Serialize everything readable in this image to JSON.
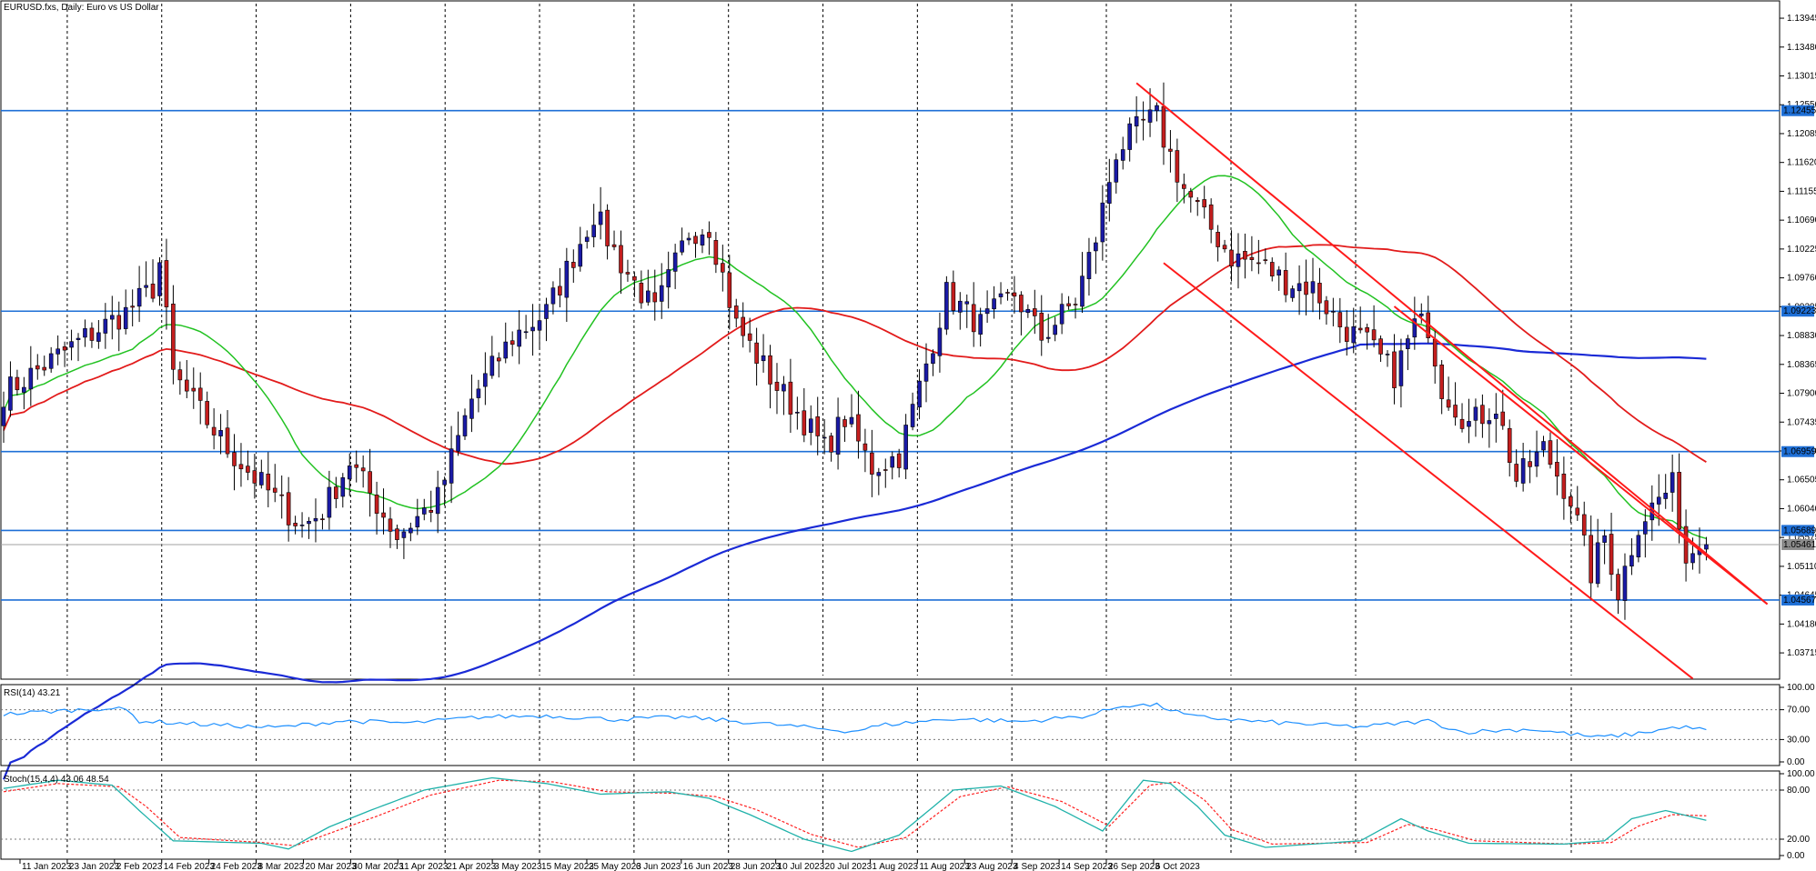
{
  "title": "EURUSD.fxs, Daily:  Euro vs US Dollar",
  "colors": {
    "background": "#ffffff",
    "frame": "#000000",
    "bull_candle": "#1a1aa6",
    "bear_candle": "#c41e1e",
    "ma_fast": "#22c222",
    "ma_mid": "#e21b1b",
    "ma_slow": "#1a2ad6",
    "hline": "#1e6fd6",
    "channel": "#ff1a1a",
    "rsi": "#1e90ff",
    "stoch_main": "#20b2aa",
    "stoch_signal": "#ff2020",
    "price_label_bg": "#1e6fd6"
  },
  "chart_data": [
    {
      "type": "candlestick",
      "title": "EURUSD.fxs, Daily:  Euro vs US Dollar",
      "price_axis_ticks": [
        "1.13945",
        "1.13480",
        "1.13015",
        "1.12550",
        "1.12085",
        "1.11620",
        "1.11155",
        "1.10690",
        "1.10225",
        "1.09760",
        "1.09295",
        "1.08830",
        "1.08365",
        "1.07900",
        "1.07435",
        "1.06970",
        "1.06505",
        "1.06040",
        "1.05575",
        "1.05110",
        "1.04645",
        "1.04180",
        "1.03715"
      ],
      "ylim": [
        1.0335,
        1.1418
      ],
      "date_axis_ticks": [
        "11 Jan 2023",
        "23 Jan 2023",
        "2 Feb 2023",
        "14 Feb 2023",
        "24 Feb 2023",
        "8 Mar 2023",
        "20 Mar 2023",
        "30 Mar 2023",
        "11 Apr 2023",
        "21 Apr 2023",
        "3 May 2023",
        "15 May 2023",
        "25 May 2023",
        "6 Jun 2023",
        "16 Jun 2023",
        "28 Jun 2023",
        "10 Jul 2023",
        "20 Jul 2023",
        "1 Aug 2023",
        "11 Aug 2023",
        "23 Aug 2023",
        "4 Sep 2023",
        "14 Sep 2023",
        "26 Sep 2023",
        "6 Oct 2023"
      ],
      "horizontal_levels": [
        "1.12455",
        "1.09223",
        "1.06959",
        "1.05689",
        "1.04567"
      ],
      "current_price": "1.05461",
      "current_price_value": 1.05461,
      "series": [
        {
          "name": "",
          "anchors": [
            [
              0,
              1.079
            ],
            [
              12,
              1.088
            ],
            [
              18,
              1.092
            ],
            [
              22,
              1.096
            ],
            [
              23,
              1.1
            ],
            [
              24,
              1.091
            ],
            [
              25,
              1.082
            ],
            [
              33,
              1.07
            ],
            [
              40,
              1.062
            ],
            [
              44,
              1.0575
            ],
            [
              47,
              1.06
            ],
            [
              51,
              1.068
            ],
            [
              58,
              1.056
            ],
            [
              64,
              1.062
            ],
            [
              69,
              1.078
            ],
            [
              75,
              1.088
            ],
            [
              80,
              1.092
            ],
            [
              87,
              1.108
            ],
            [
              91,
              1.1
            ],
            [
              96,
              1.092
            ],
            [
              101,
              1.105
            ],
            [
              104,
              1.106
            ],
            [
              108,
              1.09
            ],
            [
              114,
              1.08
            ],
            [
              117,
              1.076
            ],
            [
              121,
              1.07
            ],
            [
              124,
              1.075
            ],
            [
              128,
              1.067
            ],
            [
              132,
              1.069
            ],
            [
              135,
              1.08
            ],
            [
              139,
              1.095
            ],
            [
              144,
              1.09
            ],
            [
              149,
              1.095
            ],
            [
              153,
              1.088
            ],
            [
              158,
              1.094
            ],
            [
              161,
              1.104
            ],
            [
              164,
              1.118
            ],
            [
              168,
              1.1225
            ],
            [
              170,
              1.1235
            ],
            [
              171,
              1.12
            ],
            [
              174,
              1.112
            ],
            [
              177,
              1.107
            ],
            [
              181,
              1.101
            ],
            [
              185,
              1.1
            ],
            [
              189,
              1.097
            ],
            [
              193,
              1.096
            ],
            [
              197,
              1.09
            ],
            [
              201,
              1.087
            ],
            [
              205,
              1.082
            ],
            [
              208,
              1.09
            ],
            [
              210,
              1.09
            ],
            [
              212,
              1.08
            ],
            [
              216,
              1.074
            ],
            [
              220,
              1.077
            ],
            [
              223,
              1.065
            ],
            [
              227,
              1.07
            ],
            [
              231,
              1.062
            ],
            [
              234,
              1.05
            ],
            [
              236,
              1.056
            ],
            [
              238,
              1.047
            ],
            [
              241,
              1.058
            ],
            [
              244,
              1.062
            ],
            [
              246,
              1.064
            ],
            [
              247,
              1.059
            ],
            [
              248,
              1.052
            ],
            [
              250,
              1.056
            ],
            [
              251,
              1.0546
            ]
          ]
        },
        {
          "name": "",
          "type": "line",
          "ma_period": 20
        },
        {
          "name": "",
          "type": "line",
          "ma_period": 50
        },
        {
          "name": "",
          "type": "line",
          "ma_period": 200
        }
      ],
      "channel_lines": [
        {
          "from": [
            167,
            1.129
          ],
          "to": [
            260,
            1.045
          ]
        },
        {
          "from": [
            171,
            1.1
          ],
          "to": [
            249,
            1.033
          ]
        },
        {
          "from": [
            205,
            1.093
          ],
          "to": [
            260,
            1.045
          ]
        }
      ]
    },
    {
      "type": "line",
      "title": "RSI(14) 43.21",
      "ylim": [
        0,
        100
      ],
      "axis_ticks": [
        "100.00",
        "70.00",
        "30.00",
        "0.00"
      ],
      "levels": [
        70,
        30
      ],
      "anchors": [
        [
          0,
          64
        ],
        [
          15,
          72
        ],
        [
          18,
          70
        ],
        [
          20,
          55
        ],
        [
          30,
          50
        ],
        [
          40,
          46
        ],
        [
          50,
          55
        ],
        [
          60,
          52
        ],
        [
          70,
          60
        ],
        [
          80,
          62
        ],
        [
          90,
          57
        ],
        [
          100,
          60
        ],
        [
          110,
          53
        ],
        [
          120,
          45
        ],
        [
          125,
          41
        ],
        [
          130,
          50
        ],
        [
          140,
          58
        ],
        [
          150,
          54
        ],
        [
          160,
          62
        ],
        [
          165,
          76
        ],
        [
          170,
          76
        ],
        [
          175,
          61
        ],
        [
          185,
          54
        ],
        [
          200,
          47
        ],
        [
          210,
          55
        ],
        [
          215,
          40
        ],
        [
          225,
          44
        ],
        [
          235,
          33
        ],
        [
          240,
          37
        ],
        [
          247,
          47
        ],
        [
          251,
          43.21
        ]
      ]
    },
    {
      "type": "line",
      "title": "Stoch(15,4,4) 43.06 48.54",
      "ylim": [
        0,
        100
      ],
      "axis_ticks": [
        "100.00",
        "80.00",
        "20.00",
        "0.00"
      ],
      "levels": [
        80,
        20
      ],
      "series": [
        {
          "name": "",
          "anchors": [
            [
              0,
              82
            ],
            [
              8,
              92
            ],
            [
              16,
              86
            ],
            [
              20,
              55
            ],
            [
              25,
              18
            ],
            [
              38,
              15
            ],
            [
              42,
              8
            ],
            [
              48,
              35
            ],
            [
              54,
              55
            ],
            [
              62,
              80
            ],
            [
              72,
              95
            ],
            [
              80,
              88
            ],
            [
              88,
              75
            ],
            [
              98,
              78
            ],
            [
              104,
              70
            ],
            [
              110,
              50
            ],
            [
              118,
              20
            ],
            [
              125,
              5
            ],
            [
              132,
              25
            ],
            [
              140,
              80
            ],
            [
              147,
              85
            ],
            [
              155,
              60
            ],
            [
              162,
              30
            ],
            [
              168,
              92
            ],
            [
              172,
              88
            ],
            [
              176,
              60
            ],
            [
              180,
              25
            ],
            [
              186,
              10
            ],
            [
              200,
              18
            ],
            [
              206,
              45
            ],
            [
              210,
              30
            ],
            [
              216,
              15
            ],
            [
              230,
              14
            ],
            [
              236,
              18
            ],
            [
              240,
              45
            ],
            [
              245,
              55
            ],
            [
              251,
              43.06
            ]
          ]
        },
        {
          "name": "",
          "anchors": [
            [
              0,
              78
            ],
            [
              8,
              88
            ],
            [
              17,
              84
            ],
            [
              21,
              60
            ],
            [
              26,
              22
            ],
            [
              38,
              16
            ],
            [
              43,
              12
            ],
            [
              49,
              30
            ],
            [
              55,
              48
            ],
            [
              63,
              74
            ],
            [
              73,
              92
            ],
            [
              81,
              90
            ],
            [
              89,
              78
            ],
            [
              99,
              76
            ],
            [
              105,
              72
            ],
            [
              111,
              56
            ],
            [
              119,
              26
            ],
            [
              126,
              10
            ],
            [
              133,
              22
            ],
            [
              141,
              72
            ],
            [
              148,
              84
            ],
            [
              156,
              66
            ],
            [
              163,
              36
            ],
            [
              169,
              86
            ],
            [
              173,
              90
            ],
            [
              177,
              68
            ],
            [
              181,
              32
            ],
            [
              187,
              14
            ],
            [
              201,
              16
            ],
            [
              207,
              38
            ],
            [
              211,
              32
            ],
            [
              217,
              18
            ],
            [
              231,
              14
            ],
            [
              237,
              16
            ],
            [
              241,
              36
            ],
            [
              246,
              50
            ],
            [
              251,
              48.54
            ]
          ]
        }
      ]
    }
  ]
}
